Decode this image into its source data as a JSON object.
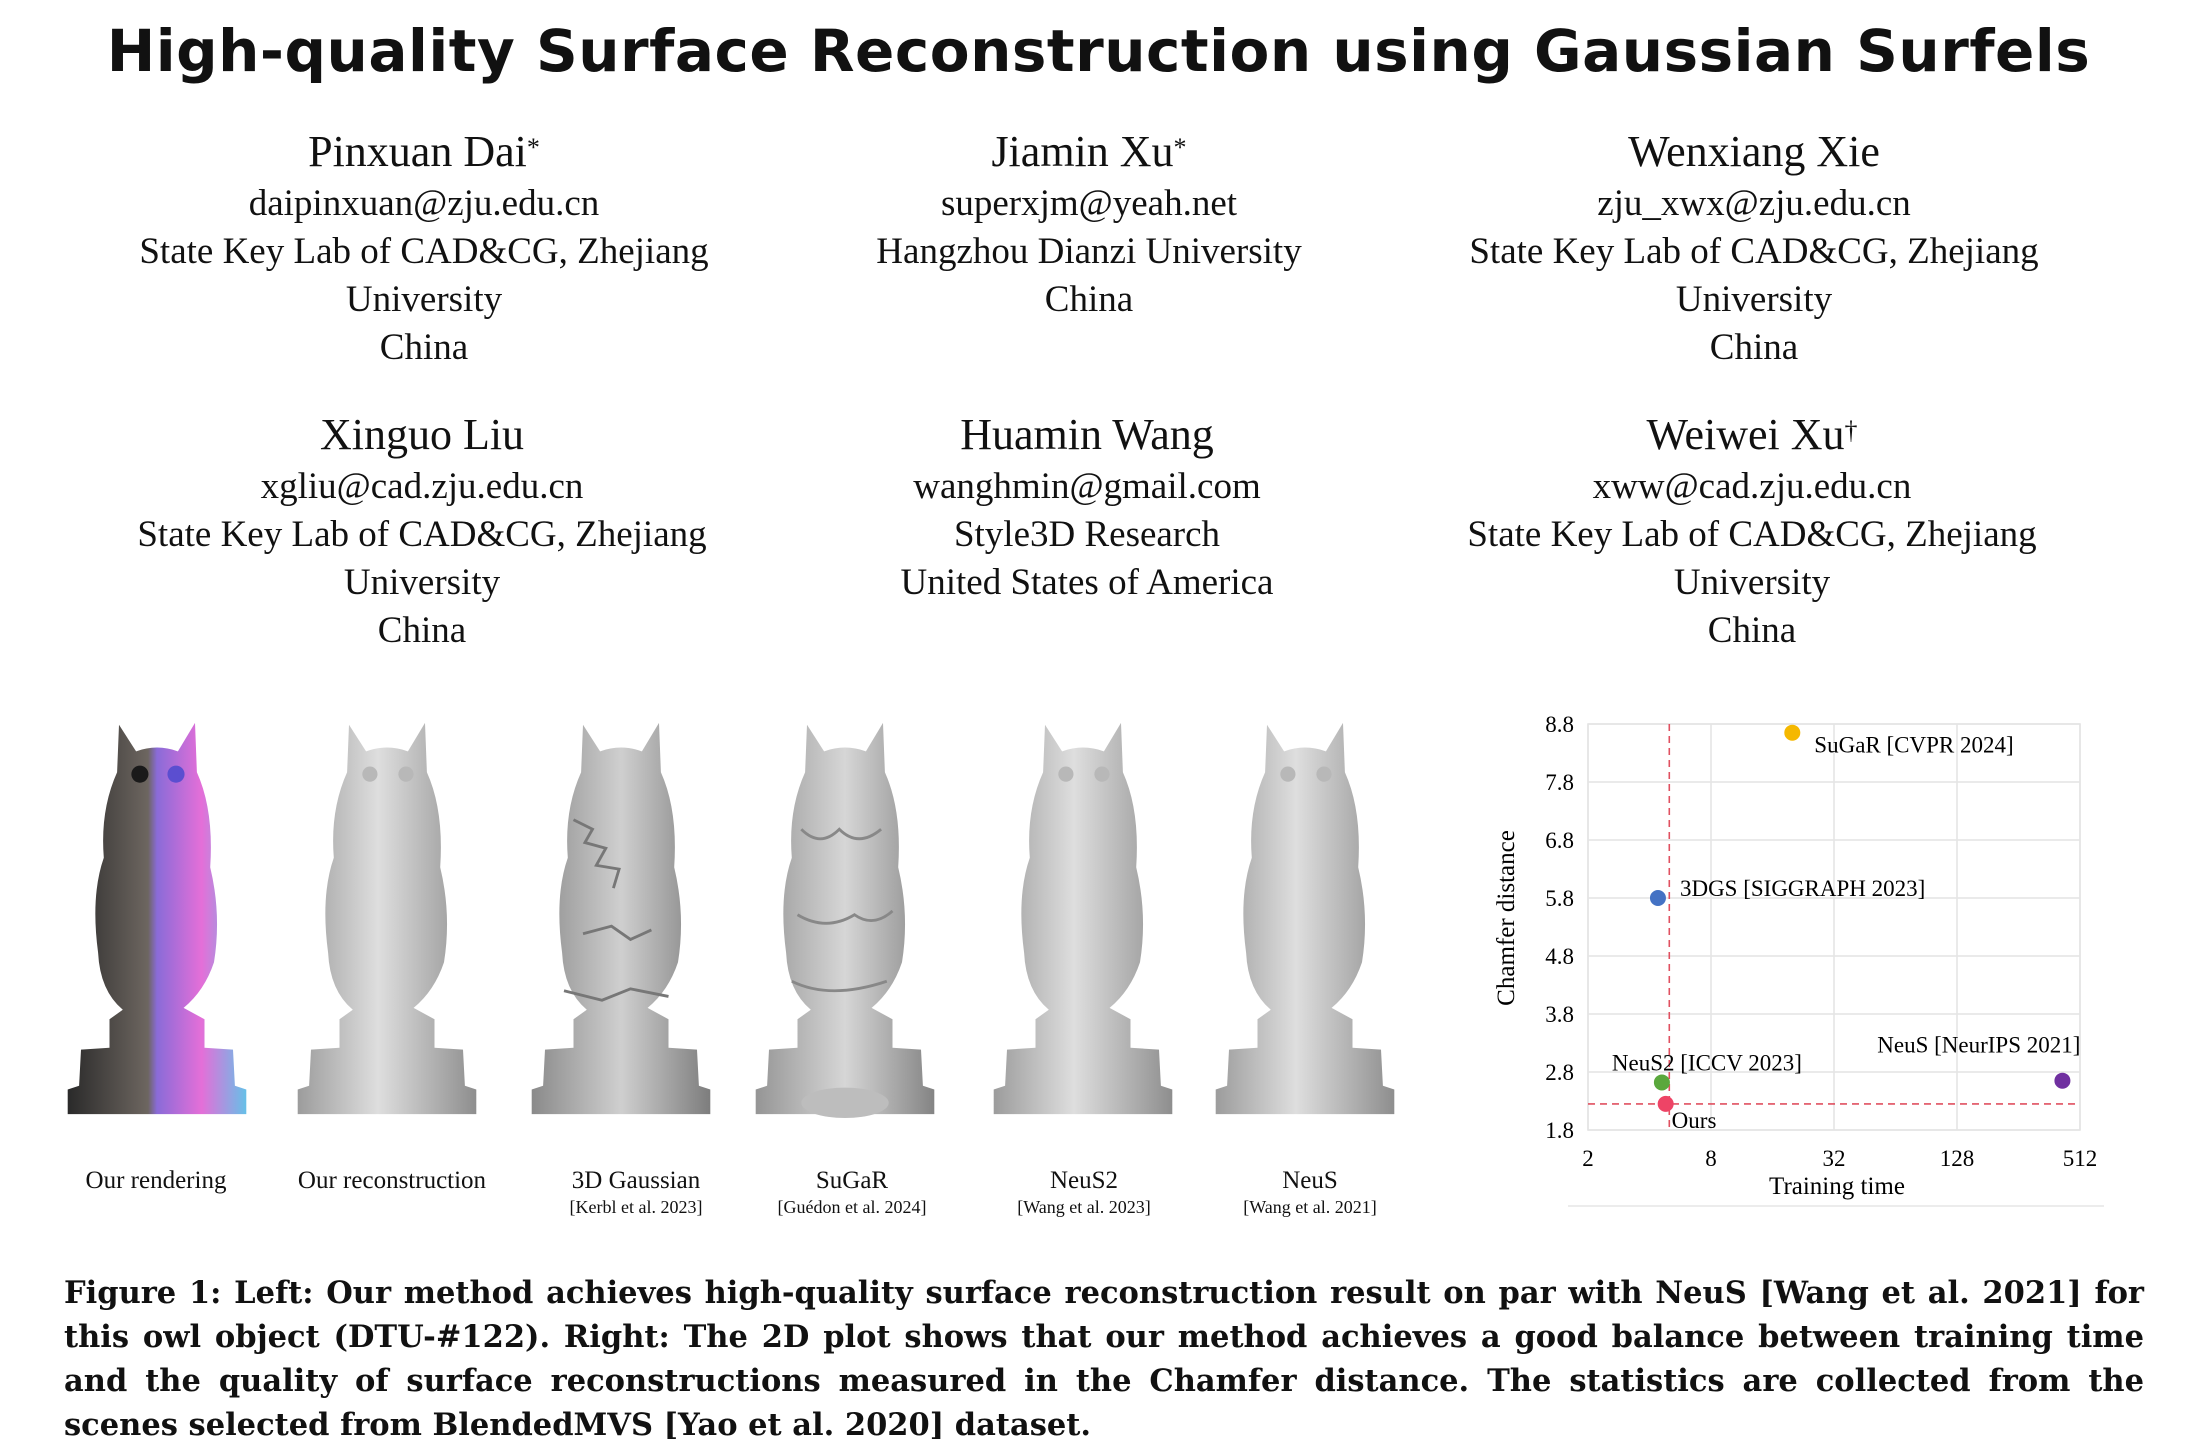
{
  "paper": {
    "title": "High-quality Surface Reconstruction using Gaussian Surfels",
    "authors": [
      {
        "name": "Pinxuan Dai",
        "mark": "*",
        "email": "daipinxuan@zju.edu.cn",
        "affil1": "State Key Lab of CAD&CG, Zhejiang",
        "affil2": "University",
        "country": "China"
      },
      {
        "name": "Jiamin Xu",
        "mark": "*",
        "email": "superxjm@yeah.net",
        "affil1": "Hangzhou Dianzi University",
        "affil2": "",
        "country": "China"
      },
      {
        "name": "Wenxiang Xie",
        "mark": "",
        "email": "zju_xwx@zju.edu.cn",
        "affil1": "State Key Lab of CAD&CG, Zhejiang",
        "affil2": "University",
        "country": "China"
      },
      {
        "name": "Xinguo Liu",
        "mark": "",
        "email": "xgliu@cad.zju.edu.cn",
        "affil1": "State Key Lab of CAD&CG, Zhejiang",
        "affil2": "University",
        "country": "China"
      },
      {
        "name": "Huamin Wang",
        "mark": "",
        "email": "wanghmin@gmail.com",
        "affil1": "Style3D Research",
        "affil2": "",
        "country": "United States of America"
      },
      {
        "name": "Weiwei Xu",
        "mark": "†",
        "email": "xww@cad.zju.edu.cn",
        "affil1": "State Key Lab of CAD&CG, Zhejiang",
        "affil2": "University",
        "country": "China"
      }
    ]
  },
  "figure": {
    "panels": [
      {
        "label": "Our rendering",
        "ref": "",
        "tint": "render"
      },
      {
        "label": "Our reconstruction",
        "ref": "",
        "tint": "smooth"
      },
      {
        "label": "3D Gaussian",
        "ref": "[Kerbl et al. 2023]",
        "tint": "noisy"
      },
      {
        "label": "SuGaR",
        "ref": "[Guédon et al. 2024]",
        "tint": "noisy2"
      },
      {
        "label": "NeuS2",
        "ref": "[Wang et al. 2023]",
        "tint": "smooth"
      },
      {
        "label": "NeuS",
        "ref": "[Wang et al. 2021]",
        "tint": "smooth"
      }
    ],
    "caption": "Figure 1: Left: Our method achieves high-quality surface reconstruction result on par with NeuS [Wang et al. 2021] for this owl object (DTU-#122). Right: The 2D plot shows that our method achieves a good balance between training time and the quality of surface reconstructions measured in the Chamfer distance. The statistics are collected from the scenes selected from BlendedMVS [Yao et al. 2020] dataset."
  },
  "chart_data": {
    "type": "scatter",
    "xlabel": "Training time",
    "ylabel": "Chamfer distance",
    "x_scale": "log2",
    "xlim": [
      2,
      512
    ],
    "ylim": [
      1.8,
      8.8
    ],
    "x_ticks": [
      2,
      8,
      32,
      128,
      512
    ],
    "y_ticks": [
      1.8,
      2.8,
      3.8,
      4.8,
      5.8,
      6.8,
      7.8,
      8.8
    ],
    "grid": true,
    "points": [
      {
        "label": "SuGaR [CVPR 2024]",
        "x": 20,
        "y": 8.65,
        "color": "#f5b800"
      },
      {
        "label": "3DGS [SIGGRAPH 2023]",
        "x": 4.4,
        "y": 5.8,
        "color": "#4472c4"
      },
      {
        "label": "NeuS2 [ICCV 2023]",
        "x": 4.6,
        "y": 2.62,
        "color": "#5aa83c"
      },
      {
        "label": "NeuS [NeurIPS 2021]",
        "x": 420,
        "y": 2.65,
        "color": "#7030a0"
      },
      {
        "label": "Ours",
        "x": 4.8,
        "y": 2.25,
        "color": "#ee4466"
      }
    ],
    "ref_lines": {
      "x": 5,
      "y": 2.25,
      "color": "#e05060"
    }
  }
}
